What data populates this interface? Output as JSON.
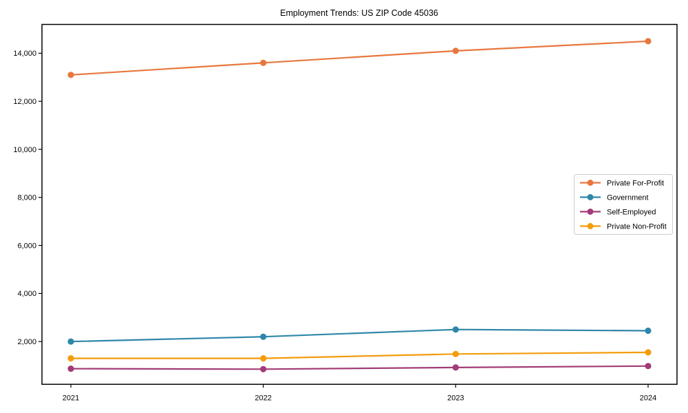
{
  "chart_data": {
    "type": "line",
    "title": "Employment Trends: US ZIP Code 45036",
    "xlabel": "",
    "ylabel": "",
    "categories": [
      "2021",
      "2022",
      "2023",
      "2024"
    ],
    "series": [
      {
        "name": "Private For-Profit",
        "color": "#e8773d",
        "values": [
          13100,
          13600,
          14100,
          14500
        ]
      },
      {
        "name": "Government",
        "color": "#2e87a9",
        "values": [
          2000,
          2200,
          2500,
          2450
        ]
      },
      {
        "name": "Self-Employed",
        "color": "#a23b76",
        "values": [
          870,
          850,
          920,
          980
        ]
      },
      {
        "name": "Private Non-Profit",
        "color": "#f39c0c",
        "values": [
          1300,
          1300,
          1480,
          1550
        ]
      }
    ],
    "ylim": [
      220,
      15200
    ],
    "yticks": [
      2000,
      4000,
      6000,
      8000,
      10000,
      12000,
      14000
    ],
    "ytick_labels": [
      "2,000",
      "4,000",
      "6,000",
      "8,000",
      "10,000",
      "12,000",
      "14,000"
    ],
    "grid": false,
    "legend_position": "right-middle",
    "marker": "circle"
  }
}
